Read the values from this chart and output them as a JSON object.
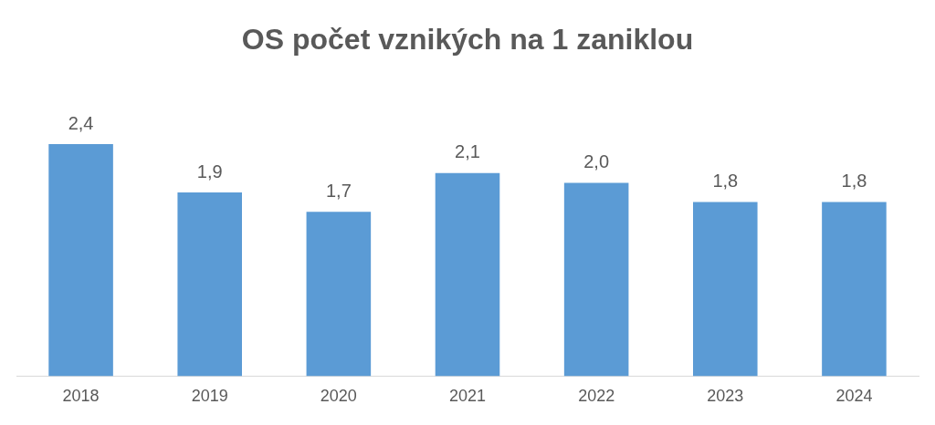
{
  "chart_data": {
    "type": "bar",
    "title": "OS počet vznikých na 1 zaniklou",
    "categories": [
      "2018",
      "2019",
      "2020",
      "2021",
      "2022",
      "2023",
      "2024"
    ],
    "values": [
      2.4,
      1.9,
      1.7,
      2.1,
      2.0,
      1.8,
      1.8
    ],
    "value_labels": [
      "2,4",
      "1,9",
      "1,7",
      "2,1",
      "2,0",
      "1,8",
      "1,8"
    ],
    "color": "#5b9bd5",
    "grid": false,
    "legend": false
  }
}
